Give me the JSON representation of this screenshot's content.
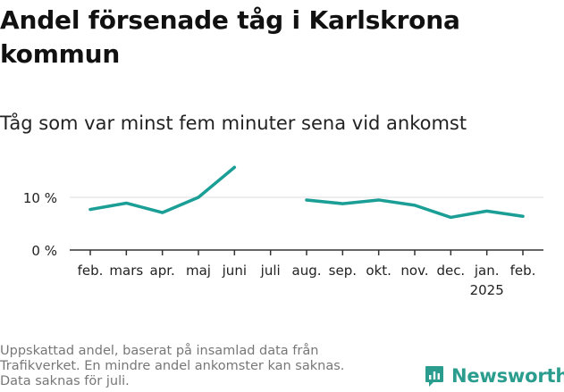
{
  "header": {
    "title": "Andel försenade tåg i Karlskrona kommun",
    "subtitle": "Tåg som var minst fem minuter sena vid ankomst"
  },
  "footer": {
    "lines": [
      "Uppskattad andel, baserat på insamlad data från",
      "Trafikverket. En mindre andel ankomster kan saknas.",
      "Data saknas för juli."
    ]
  },
  "brand": {
    "name": "Newsworthy",
    "icon": "newsworthy-logo-icon",
    "color": "#2a9d8f"
  },
  "chart_data": {
    "type": "line",
    "title": "Andel försenade tåg i Karlskrona kommun",
    "subtitle": "Tåg som var minst fem minuter sena vid ankomst",
    "categories": [
      "feb.",
      "mars",
      "apr.",
      "maj",
      "juni",
      "juli",
      "aug.",
      "sep.",
      "okt.",
      "nov.",
      "dec.",
      "jan.",
      "feb."
    ],
    "year_labels": [
      "",
      "",
      "",
      "",
      "",
      "",
      "",
      "",
      "",
      "",
      "",
      "2025",
      ""
    ],
    "series": [
      {
        "values": [
          7.7,
          8.9,
          7.1,
          10.0,
          15.7,
          null,
          9.5,
          8.8,
          9.5,
          8.5,
          6.2,
          7.4,
          6.4
        ],
        "color": "#1a9e96"
      }
    ],
    "y_ticks": [
      0,
      10
    ],
    "y_tick_labels": [
      "0 %",
      "10 %"
    ],
    "ylim": [
      0,
      17
    ],
    "grid": true,
    "legend": "none"
  }
}
